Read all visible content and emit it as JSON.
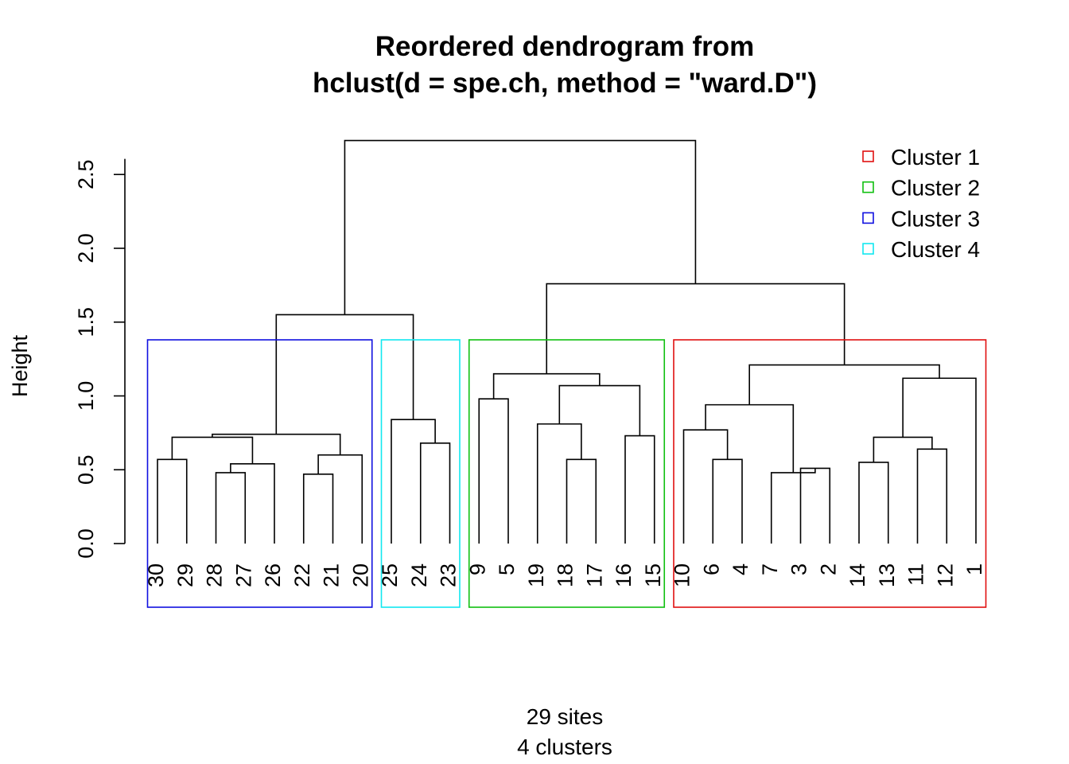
{
  "chart_data": {
    "type": "dendrogram",
    "title": "Reordered dendrogram from",
    "title_line2": "hclust(d = spe.ch, method = \"ward.D\")",
    "xlabel_line1": "29 sites",
    "xlabel_line2": "4 clusters",
    "ylabel": "Height",
    "ylim": [
      0,
      2.8
    ],
    "y_ticks": [
      "0.0",
      "0.5",
      "1.0",
      "1.5",
      "2.0",
      "2.5"
    ],
    "leaf_order": [
      "30",
      "29",
      "28",
      "27",
      "26",
      "22",
      "21",
      "20",
      "25",
      "24",
      "23",
      "9",
      "5",
      "19",
      "18",
      "17",
      "16",
      "15",
      "10",
      "6",
      "4",
      "7",
      "3",
      "2",
      "14",
      "13",
      "11",
      "12",
      "1"
    ],
    "merges": [
      {
        "left": "30",
        "right": "29",
        "height": 0.57
      },
      {
        "left": "28",
        "right": "27",
        "height": 0.48
      },
      {
        "left": "{28,27}",
        "right": "26",
        "height": 0.54
      },
      {
        "left": "{30,29}",
        "right": "{28,27,26}",
        "height": 0.72
      },
      {
        "left": "22",
        "right": "21",
        "height": 0.47
      },
      {
        "left": "{22,21}",
        "right": "20",
        "height": 0.6
      },
      {
        "left": "{30..26}",
        "right": "{22,21,20}",
        "height": 0.74
      },
      {
        "left": "24",
        "right": "23",
        "height": 0.68
      },
      {
        "left": "25",
        "right": "{24,23}",
        "height": 0.84
      },
      {
        "left": "{30..20}",
        "right": "{25,24,23}",
        "height": 1.55
      },
      {
        "left": "9",
        "right": "5",
        "height": 0.98
      },
      {
        "left": "18",
        "right": "17",
        "height": 0.57
      },
      {
        "left": "19",
        "right": "{18,17}",
        "height": 0.81
      },
      {
        "left": "16",
        "right": "15",
        "height": 0.73
      },
      {
        "left": "{19,18,17}",
        "right": "{16,15}",
        "height": 1.07
      },
      {
        "left": "{9,5}",
        "right": "{19..15}",
        "height": 1.15
      },
      {
        "left": "6",
        "right": "4",
        "height": 0.57
      },
      {
        "left": "10",
        "right": "{6,4}",
        "height": 0.77
      },
      {
        "left": "3",
        "right": "2",
        "height": 0.51
      },
      {
        "left": "7",
        "right": "{3,2}",
        "height": 0.48
      },
      {
        "left": "{10,6,4}",
        "right": "{7,3,2}",
        "height": 0.94
      },
      {
        "left": "14",
        "right": "13",
        "height": 0.55
      },
      {
        "left": "11",
        "right": "12",
        "height": 0.64
      },
      {
        "left": "{14,13}",
        "right": "{11,12}",
        "height": 0.72
      },
      {
        "left": "{14..12}",
        "right": "1",
        "height": 1.12
      },
      {
        "left": "{10..2}",
        "right": "{14..1}",
        "height": 1.21
      },
      {
        "left": "{9..15}",
        "right": "{10..1}",
        "height": 1.76
      },
      {
        "left": "{30..23}",
        "right": "{9..1}",
        "height": 2.73
      }
    ],
    "clusters": [
      {
        "name": "Cluster 1",
        "color": "#DF536B",
        "leaves": [
          "10",
          "6",
          "4",
          "7",
          "3",
          "2",
          "14",
          "13",
          "11",
          "12",
          "1"
        ]
      },
      {
        "name": "Cluster 2",
        "color": "#22B22B",
        "leaves": [
          "9",
          "5",
          "19",
          "18",
          "17",
          "16",
          "15"
        ]
      },
      {
        "name": "Cluster 3",
        "color": "#1F1FD6",
        "leaves": [
          "30",
          "29",
          "28",
          "27",
          "26",
          "22",
          "21",
          "20"
        ]
      },
      {
        "name": "Cluster 4",
        "color": "#22E8F0",
        "leaves": [
          "25",
          "24",
          "23"
        ]
      }
    ],
    "legend": {
      "position": "top-right",
      "entries": [
        "Cluster 1",
        "Cluster 2",
        "Cluster 3",
        "Cluster 4"
      ],
      "colors": [
        "#E01010",
        "#10C010",
        "#1010E0",
        "#10E8F0"
      ]
    },
    "box_top_height": 1.38
  }
}
